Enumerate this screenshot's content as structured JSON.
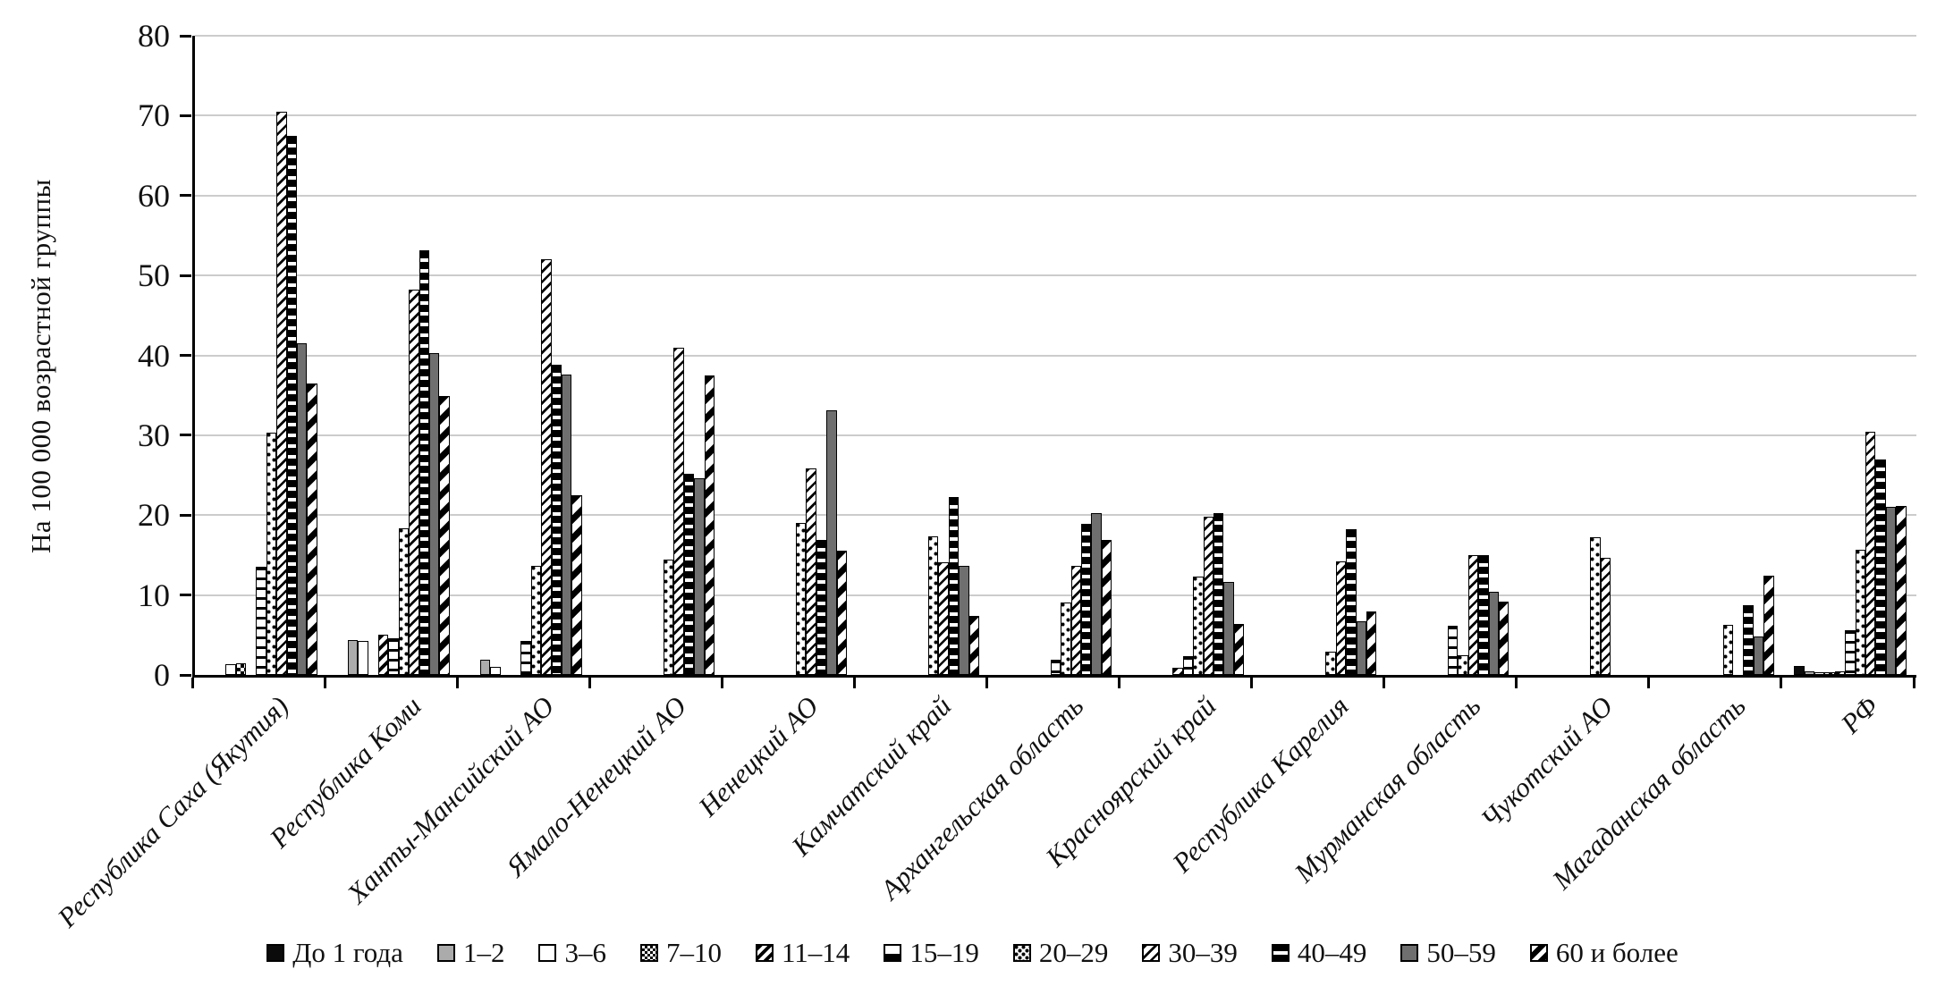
{
  "chart_data": {
    "type": "bar",
    "title": "",
    "ylabel": "На 100 000 возрастной группы",
    "xlabel": "",
    "ylim": [
      0,
      80
    ],
    "y_ticks": [
      0,
      10,
      20,
      30,
      40,
      50,
      60,
      70,
      80
    ],
    "grid": true,
    "legend_position": "bottom",
    "categories": [
      "Республика Саха (Якутия)",
      "Республика Коми",
      "Ханты-Мансийский АО",
      "Ямало-Ненецкий АО",
      "Ненецкий АО",
      "Камчатский край",
      "Архангельская область",
      "Красноярский край",
      "Республика Карелия",
      "Мурманская область",
      "Чукотский АО",
      "Магаданская область",
      "РФ"
    ],
    "series": [
      {
        "name": "До 1 года",
        "pattern": "solid-black",
        "values": [
          0,
          0,
          0,
          0,
          0,
          0,
          0,
          0,
          0,
          0,
          0,
          0,
          1.1
        ]
      },
      {
        "name": "1–2",
        "pattern": "solid-gray",
        "values": [
          0,
          4.4,
          1.9,
          0,
          0,
          0,
          0,
          0,
          0,
          0,
          0,
          0,
          0.4
        ]
      },
      {
        "name": "3–6",
        "pattern": "white",
        "values": [
          1.4,
          4.3,
          1.0,
          0,
          0,
          0,
          0,
          0,
          0,
          0,
          0,
          0,
          0.3
        ]
      },
      {
        "name": "7–10",
        "pattern": "checker",
        "values": [
          1.5,
          0,
          0,
          0,
          0,
          0,
          0,
          0,
          0,
          0,
          0,
          0,
          0.3
        ]
      },
      {
        "name": "11–14",
        "pattern": "diag-dense",
        "values": [
          0,
          5.0,
          0,
          0,
          0,
          0,
          0,
          0.9,
          0,
          0,
          0,
          0,
          0.4
        ]
      },
      {
        "name": "15–19",
        "pattern": "h-ladder",
        "values": [
          13.5,
          4.6,
          4.3,
          0,
          0,
          0,
          1.9,
          2.3,
          0,
          6.1,
          0,
          0,
          5.6
        ]
      },
      {
        "name": "20–29",
        "pattern": "dots",
        "values": [
          30.3,
          18.3,
          13.6,
          14.4,
          19.0,
          17.4,
          9.1,
          12.3,
          2.9,
          2.5,
          17.2,
          6.3,
          15.7
        ]
      },
      {
        "name": "30–39",
        "pattern": "diag-dash",
        "values": [
          70.5,
          48.2,
          52.0,
          41.0,
          25.9,
          14.1,
          13.6,
          19.8,
          14.2,
          15.0,
          14.7,
          0,
          30.4
        ]
      },
      {
        "name": "40–49",
        "pattern": "black-stripe",
        "values": [
          67.5,
          53.2,
          38.8,
          25.2,
          16.9,
          22.3,
          18.9,
          20.3,
          18.2,
          15.0,
          0,
          8.7,
          27.0
        ]
      },
      {
        "name": "50–59",
        "pattern": "solid-darkgray",
        "values": [
          41.5,
          40.3,
          37.6,
          24.6,
          33.1,
          13.7,
          20.2,
          11.6,
          6.7,
          10.4,
          0,
          4.8,
          21.0
        ]
      },
      {
        "name": "60 и более",
        "pattern": "diag-bold",
        "values": [
          36.5,
          34.9,
          22.5,
          37.5,
          15.6,
          7.4,
          16.9,
          6.4,
          8.0,
          9.2,
          0,
          12.4,
          21.1
        ]
      }
    ]
  },
  "colors": {
    "axis": "#000000",
    "gridline": "#cccccc",
    "text": "#111111",
    "gray_series": "#ababab",
    "darkgray_series": "#6f6f6f"
  }
}
